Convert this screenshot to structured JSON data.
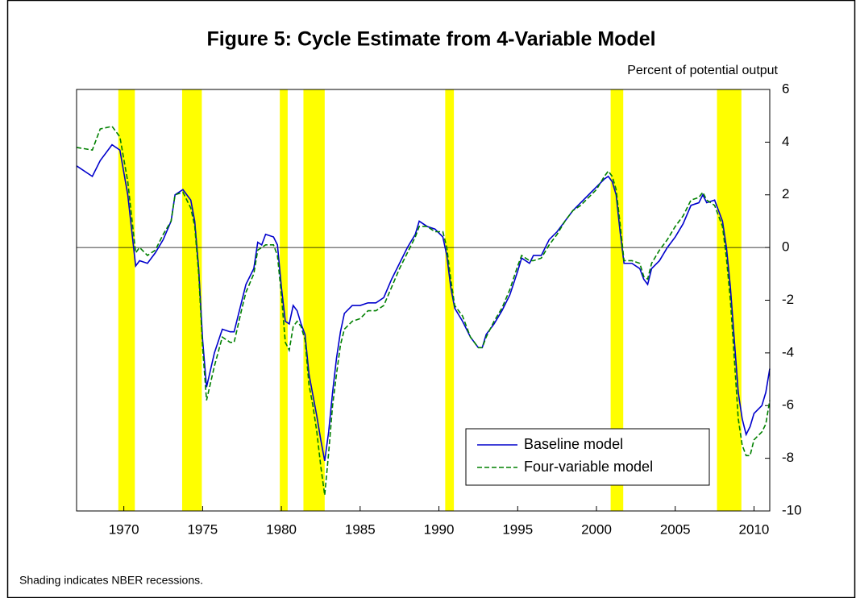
{
  "chart_data": {
    "type": "line",
    "title": "Figure 5:   Cycle Estimate from 4-Variable Model",
    "y_label": "Percent of potential output",
    "note": "Shading indicates NBER recessions.",
    "xlim": [
      1967,
      2011
    ],
    "xticks": [
      1970,
      1975,
      1980,
      1985,
      1990,
      1995,
      2000,
      2005,
      2010
    ],
    "ylim": [
      -10,
      6
    ],
    "yticks": [
      -10,
      -8,
      -6,
      -4,
      -2,
      0,
      2,
      4,
      6
    ],
    "y_axis_side": "right",
    "zero_line": true,
    "legend": "lower right",
    "recession_color": "#ffff00",
    "recessions": [
      [
        1969.65,
        1970.7
      ],
      [
        1973.7,
        1974.95
      ],
      [
        1979.9,
        1980.4
      ],
      [
        1981.4,
        1982.75
      ],
      [
        1990.4,
        1990.95
      ],
      [
        2000.9,
        2001.7
      ],
      [
        2007.65,
        2009.2
      ]
    ],
    "x": [
      1967,
      1968,
      1968.5,
      1969.25,
      1969.75,
      1970.25,
      1970.75,
      1971,
      1971.5,
      1972,
      1972.5,
      1973,
      1973.25,
      1973.75,
      1974.25,
      1974.5,
      1974.75,
      1975,
      1975.25,
      1975.75,
      1976.25,
      1976.75,
      1977,
      1977.5,
      1977.75,
      1978.25,
      1978.5,
      1978.75,
      1979,
      1979.5,
      1979.75,
      1980,
      1980.25,
      1980.5,
      1980.75,
      1981,
      1981.25,
      1981.5,
      1981.75,
      1982,
      1982.25,
      1982.5,
      1982.75,
      1983,
      1983.25,
      1983.5,
      1983.75,
      1984,
      1984.5,
      1985,
      1985.5,
      1986,
      1986.5,
      1987,
      1987.5,
      1988,
      1988.5,
      1988.75,
      1989.25,
      1989.75,
      1990.25,
      1990.5,
      1990.75,
      1991,
      1991.5,
      1992,
      1992.5,
      1992.75,
      1993,
      1993.5,
      1994,
      1994.5,
      1995,
      1995.25,
      1995.75,
      1996,
      1996.5,
      1997,
      1997.5,
      1998,
      1998.5,
      1999,
      1999.5,
      2000,
      2000.5,
      2000.75,
      2001,
      2001.25,
      2001.5,
      2001.75,
      2002.25,
      2002.75,
      2003,
      2003.25,
      2003.5,
      2004,
      2004.5,
      2005,
      2005.5,
      2006,
      2006.5,
      2006.75,
      2007,
      2007.5,
      2008,
      2008.25,
      2008.5,
      2008.75,
      2009,
      2009.25,
      2009.5,
      2009.75,
      2010,
      2010.5,
      2010.75,
      2011
    ],
    "series": [
      {
        "name": "Baseline model",
        "color": "#0000cc",
        "dashed": false,
        "values": [
          3.1,
          2.7,
          3.3,
          3.9,
          3.7,
          2.0,
          -0.7,
          -0.5,
          -0.6,
          -0.2,
          0.3,
          1.0,
          2.0,
          2.2,
          1.8,
          1.0,
          -0.8,
          -3.5,
          -5.3,
          -4.0,
          -3.1,
          -3.2,
          -3.2,
          -2.0,
          -1.4,
          -0.8,
          0.2,
          0.1,
          0.5,
          0.4,
          0.1,
          -1.5,
          -2.8,
          -2.9,
          -2.2,
          -2.4,
          -2.9,
          -3.3,
          -4.8,
          -5.6,
          -6.4,
          -7.3,
          -8.1,
          -7.0,
          -5.5,
          -4.2,
          -3.2,
          -2.5,
          -2.2,
          -2.2,
          -2.1,
          -2.1,
          -1.9,
          -1.2,
          -0.6,
          0.0,
          0.5,
          1.0,
          0.8,
          0.7,
          0.4,
          -0.3,
          -1.5,
          -2.3,
          -2.8,
          -3.4,
          -3.8,
          -3.8,
          -3.3,
          -2.9,
          -2.4,
          -1.8,
          -0.9,
          -0.4,
          -0.6,
          -0.3,
          -0.3,
          0.3,
          0.6,
          1.0,
          1.4,
          1.7,
          2.0,
          2.3,
          2.6,
          2.7,
          2.5,
          2.0,
          0.6,
          -0.6,
          -0.6,
          -0.8,
          -1.2,
          -1.4,
          -0.8,
          -0.5,
          0.0,
          0.4,
          0.9,
          1.6,
          1.7,
          2.0,
          1.7,
          1.8,
          1.0,
          0.0,
          -1.5,
          -3.5,
          -5.5,
          -6.5,
          -7.1,
          -6.8,
          -6.3,
          -6.0,
          -5.5,
          -4.6
        ]
      },
      {
        "name": "Four-variable model",
        "color": "#008000",
        "dashed": true,
        "values": [
          3.8,
          3.7,
          4.5,
          4.6,
          4.2,
          2.5,
          -0.2,
          0.0,
          -0.3,
          -0.1,
          0.5,
          1.0,
          2.0,
          2.1,
          1.5,
          0.8,
          -1.0,
          -3.8,
          -5.8,
          -4.5,
          -3.4,
          -3.6,
          -3.6,
          -2.3,
          -1.7,
          -1.0,
          -0.1,
          0.0,
          0.1,
          0.1,
          -0.3,
          -1.8,
          -3.6,
          -3.9,
          -3.0,
          -2.8,
          -3.0,
          -3.5,
          -5.2,
          -6.0,
          -7.0,
          -8.3,
          -9.4,
          -7.8,
          -6.0,
          -4.8,
          -3.7,
          -3.1,
          -2.8,
          -2.7,
          -2.4,
          -2.4,
          -2.2,
          -1.5,
          -0.8,
          -0.2,
          0.4,
          0.8,
          0.8,
          0.6,
          0.6,
          0.0,
          -1.2,
          -2.2,
          -2.6,
          -3.4,
          -3.8,
          -3.8,
          -3.4,
          -2.8,
          -2.3,
          -1.6,
          -0.7,
          -0.3,
          -0.5,
          -0.5,
          -0.4,
          0.1,
          0.5,
          1.0,
          1.4,
          1.6,
          1.9,
          2.2,
          2.7,
          2.9,
          2.7,
          2.2,
          0.9,
          -0.5,
          -0.5,
          -0.6,
          -1.1,
          -1.2,
          -0.6,
          -0.1,
          0.3,
          0.8,
          1.2,
          1.8,
          1.9,
          2.1,
          1.8,
          1.6,
          0.8,
          -0.4,
          -2.0,
          -4.2,
          -6.5,
          -7.5,
          -7.9,
          -7.9,
          -7.3,
          -7.0,
          -6.7,
          -5.8
        ]
      }
    ]
  }
}
